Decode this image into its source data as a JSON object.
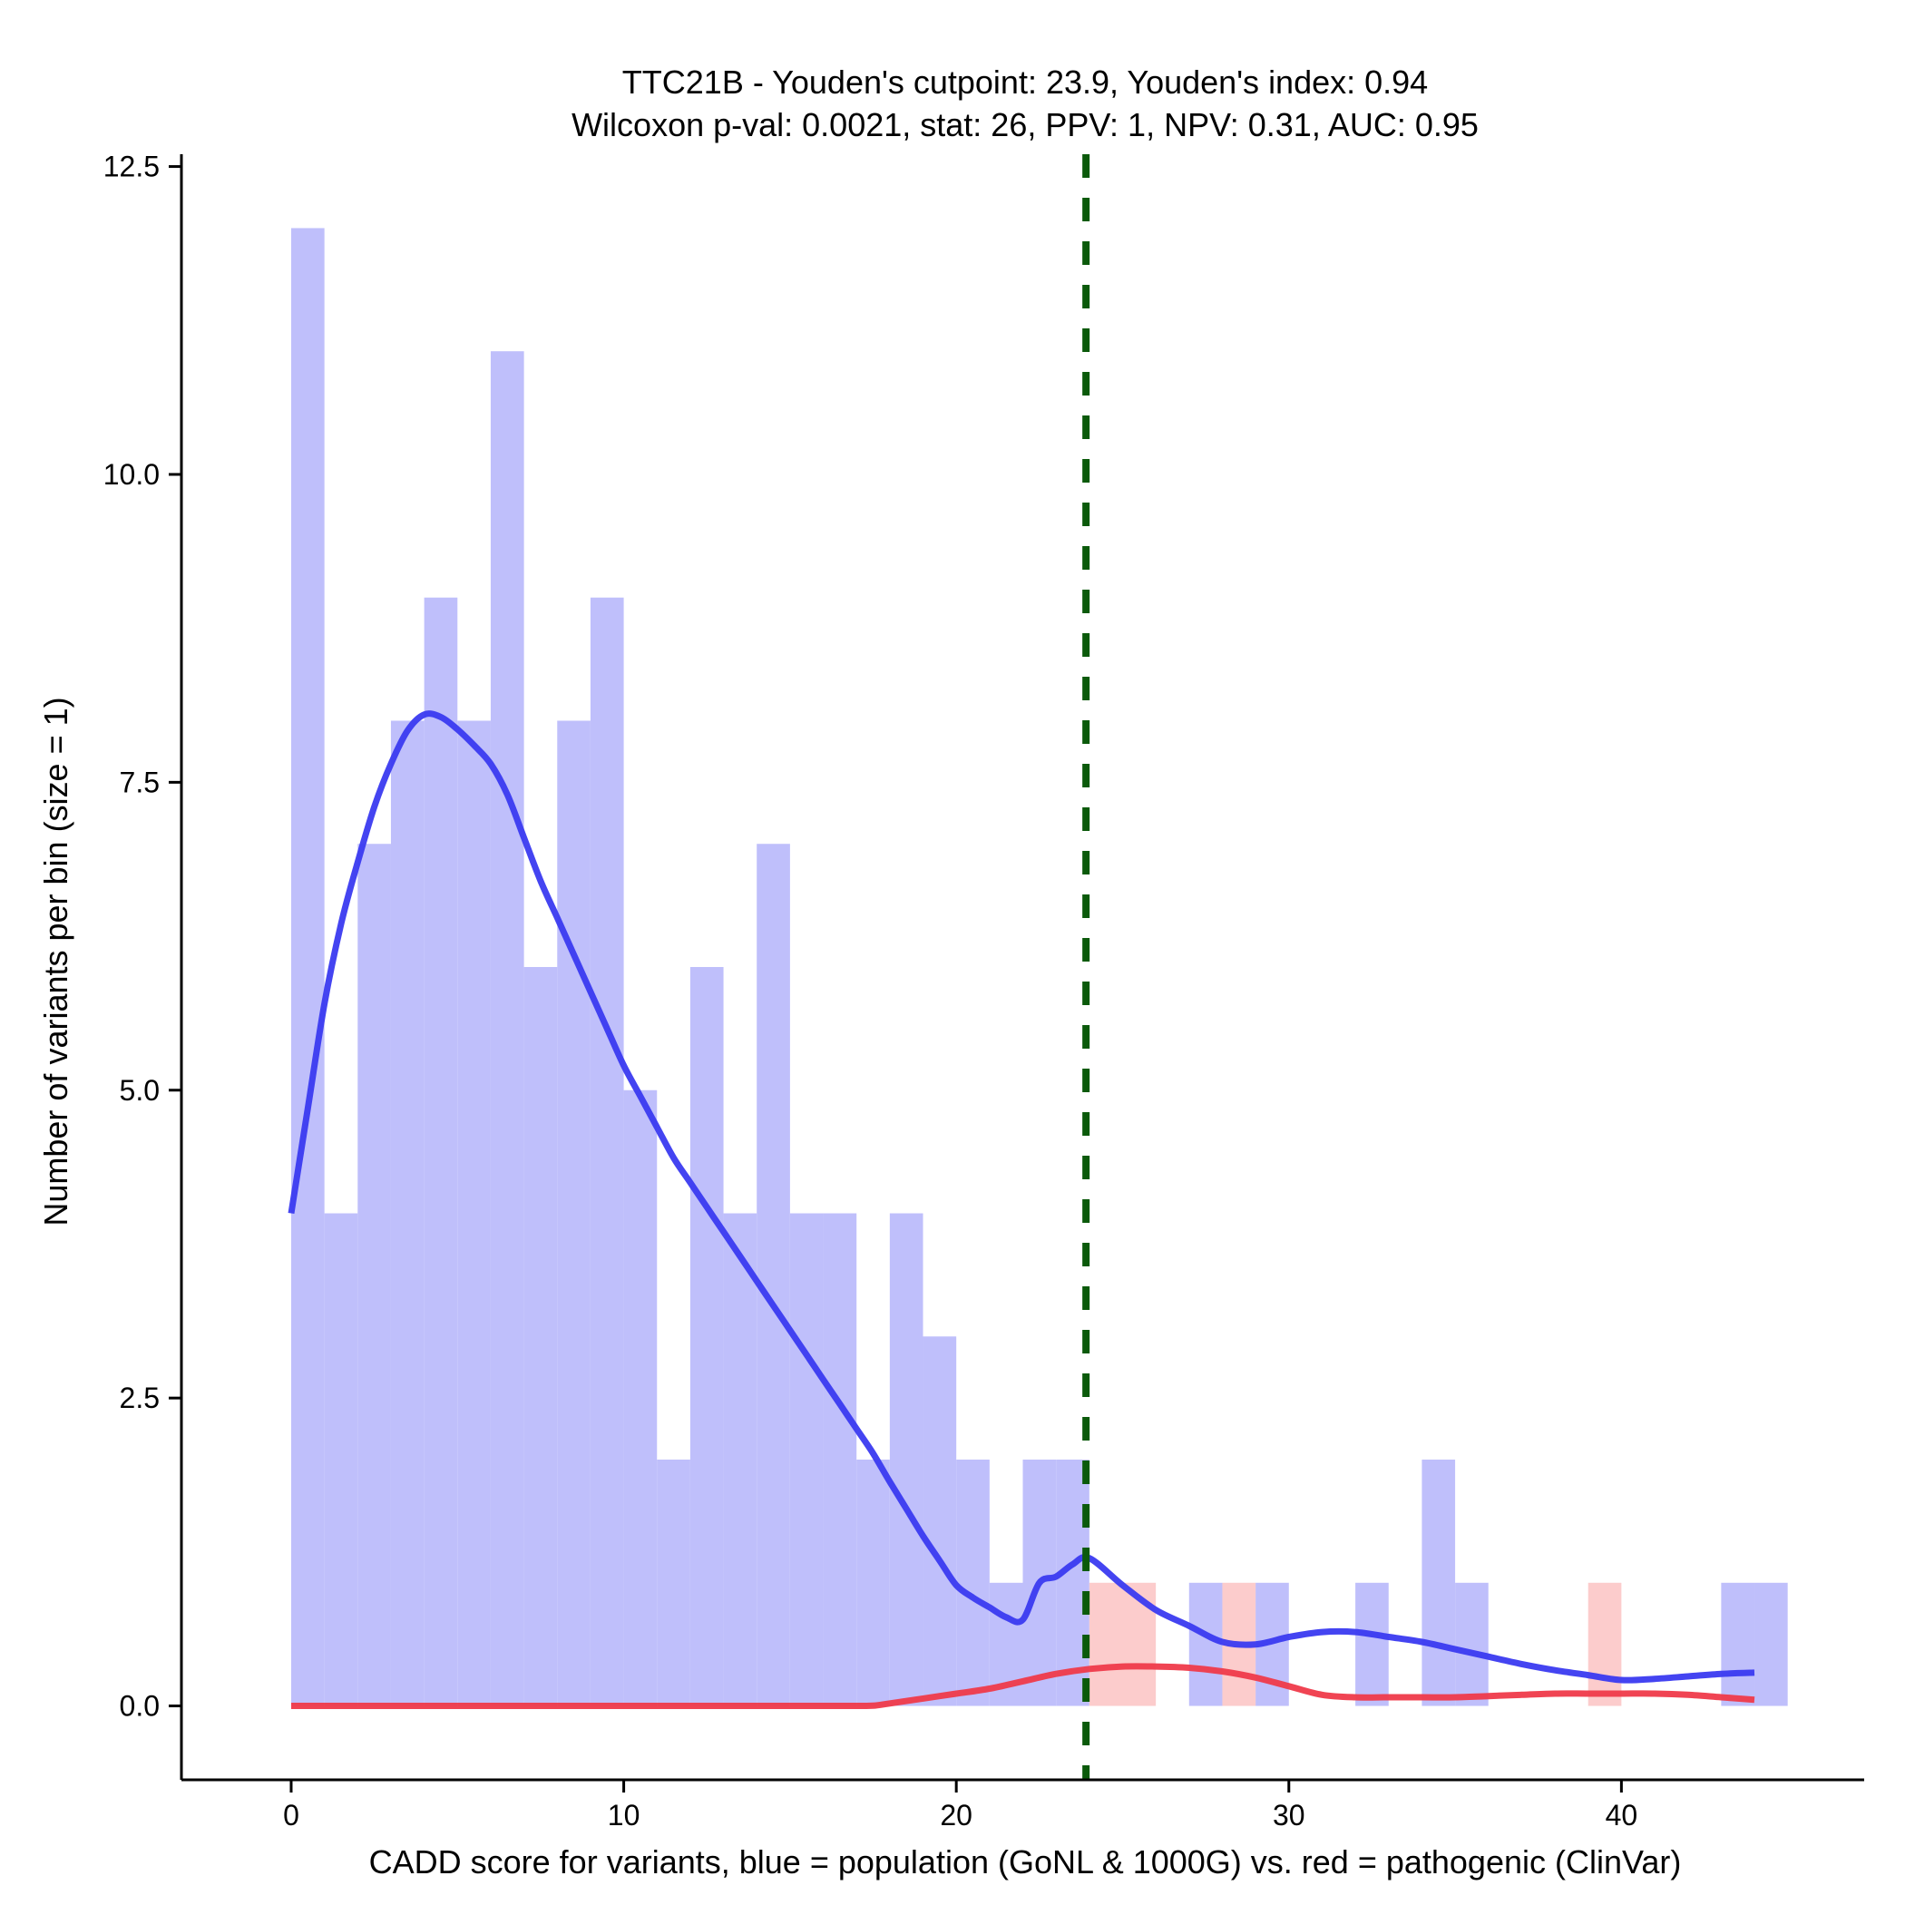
{
  "chart_data": {
    "type": "bar",
    "title_line1": "TTC21B - Youden's cutpoint: 23.9, Youden's index: 0.94",
    "title_line2": "Wilcoxon p-val: 0.0021, stat: 26, PPV: 1, NPV: 0.31, AUC: 0.95",
    "xlabel": "CADD score for variants, blue = population (GoNL & 1000G) vs. red = pathogenic (ClinVar)",
    "ylabel": "Number of variants per bin (size = 1)",
    "xlim": [
      -3.3,
      47.3
    ],
    "ylim": [
      -0.6,
      12.6
    ],
    "x_ticks": [
      0,
      10,
      20,
      30,
      40
    ],
    "x_tick_labels": [
      "0",
      "10",
      "20",
      "30",
      "40"
    ],
    "y_ticks": [
      0,
      2.5,
      5,
      7.5,
      10,
      12.5
    ],
    "y_tick_labels": [
      "0.0",
      "2.5",
      "5.0",
      "7.5",
      "10.0",
      "12.5"
    ],
    "bin_width": 1,
    "cutpoint": 23.9,
    "colors": {
      "population_bars": "#bfbffb",
      "pathogenic_bars": "#fbbfbf",
      "population_density": "#3a3af0",
      "pathogenic_density": "#ef3a4a",
      "cutpoint_line": "#0b5a0b",
      "axis": "#000000"
    },
    "series": [
      {
        "name": "population (GoNL & 1000G)",
        "bin_starts": [
          0,
          1,
          2,
          3,
          4,
          5,
          6,
          7,
          8,
          9,
          10,
          11,
          12,
          13,
          14,
          15,
          16,
          17,
          18,
          19,
          20,
          21,
          22,
          23,
          27,
          29,
          32,
          34,
          35,
          43,
          44
        ],
        "values": [
          12,
          4,
          7,
          8,
          9,
          8,
          11,
          6,
          8,
          9,
          5,
          2,
          6,
          4,
          7,
          4,
          4,
          2,
          4,
          3,
          2,
          1,
          2,
          2,
          1,
          1,
          1,
          2,
          1,
          1,
          1
        ]
      },
      {
        "name": "pathogenic (ClinVar)",
        "bin_starts": [
          24,
          25,
          28,
          39
        ],
        "values": [
          1,
          1,
          1,
          1
        ]
      }
    ],
    "density_curves": [
      {
        "name": "population density",
        "x": [
          0,
          0.5,
          1,
          1.5,
          2,
          2.5,
          3,
          3.5,
          4,
          4.5,
          5,
          5.5,
          6,
          6.5,
          7,
          7.5,
          8,
          8.5,
          9,
          9.5,
          10,
          10.5,
          11,
          11.5,
          12,
          12.5,
          13,
          13.5,
          14,
          14.5,
          15,
          15.5,
          16,
          16.5,
          17,
          17.5,
          18,
          18.5,
          19,
          19.5,
          20,
          20.5,
          21,
          21.5,
          22,
          22.5,
          23,
          23.5,
          24,
          25,
          26,
          27,
          28,
          29,
          30,
          31,
          32,
          33,
          34,
          35,
          36,
          37,
          38,
          39,
          40,
          41,
          42,
          43,
          44
        ],
        "y": [
          4.0,
          4.85,
          5.7,
          6.35,
          6.85,
          7.3,
          7.65,
          7.92,
          8.05,
          8.03,
          7.93,
          7.8,
          7.65,
          7.4,
          7.05,
          6.7,
          6.4,
          6.1,
          5.8,
          5.5,
          5.2,
          4.95,
          4.7,
          4.45,
          4.25,
          4.05,
          3.85,
          3.65,
          3.45,
          3.25,
          3.05,
          2.85,
          2.65,
          2.45,
          2.25,
          2.05,
          1.82,
          1.6,
          1.38,
          1.18,
          0.98,
          0.88,
          0.8,
          0.72,
          0.7,
          1.0,
          1.05,
          1.15,
          1.2,
          0.98,
          0.78,
          0.65,
          0.52,
          0.5,
          0.56,
          0.6,
          0.6,
          0.56,
          0.52,
          0.46,
          0.4,
          0.34,
          0.29,
          0.25,
          0.21,
          0.22,
          0.24,
          0.26,
          0.27
        ]
      },
      {
        "name": "pathogenic density",
        "x": [
          0,
          5,
          10,
          15,
          17,
          17.5,
          18,
          19,
          20,
          21,
          22,
          23,
          24,
          25,
          26,
          27,
          28,
          29,
          30,
          31,
          32,
          33,
          34,
          35,
          36,
          37,
          38,
          39,
          40,
          41,
          42,
          43,
          44
        ],
        "y": [
          0,
          0,
          0,
          0,
          0,
          0.002,
          0.02,
          0.06,
          0.1,
          0.14,
          0.2,
          0.26,
          0.3,
          0.32,
          0.32,
          0.31,
          0.28,
          0.23,
          0.16,
          0.09,
          0.07,
          0.07,
          0.07,
          0.07,
          0.08,
          0.09,
          0.1,
          0.1,
          0.1,
          0.1,
          0.09,
          0.07,
          0.05
        ]
      }
    ]
  }
}
